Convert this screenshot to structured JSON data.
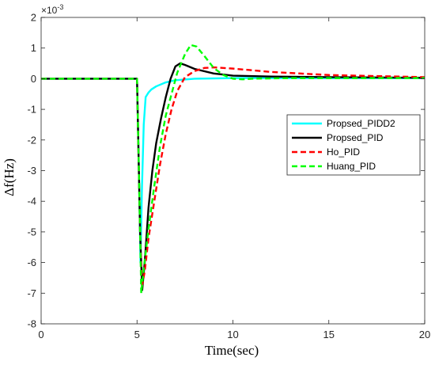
{
  "chart_data": {
    "type": "line",
    "xlabel": "Time(sec)",
    "ylabel": "Δf(Hz)",
    "y_exponent_label": "×10",
    "y_exponent_power": "-3",
    "xlim": [
      0,
      20
    ],
    "ylim": [
      -8,
      2
    ],
    "x_ticks": [
      0,
      5,
      10,
      15,
      20
    ],
    "y_ticks": [
      -8,
      -7,
      -6,
      -5,
      -4,
      -3,
      -2,
      -1,
      0,
      1,
      2
    ],
    "grid": false,
    "legend_position": "center-right",
    "series": [
      {
        "name": "Propsed_PIDD2",
        "color": "#00ffff",
        "dash": "solid",
        "points": [
          [
            0,
            0
          ],
          [
            5.0,
            0
          ],
          [
            5.1,
            -3.0
          ],
          [
            5.18,
            -6.0
          ],
          [
            5.26,
            -3.5
          ],
          [
            5.35,
            -1.5
          ],
          [
            5.45,
            -0.6
          ],
          [
            5.6,
            -0.45
          ],
          [
            5.75,
            -0.35
          ],
          [
            6.0,
            -0.25
          ],
          [
            6.5,
            -0.12
          ],
          [
            7.0,
            -0.05
          ],
          [
            8.0,
            0.0
          ],
          [
            10,
            0.02
          ],
          [
            15,
            0.02
          ],
          [
            20,
            0.02
          ]
        ]
      },
      {
        "name": "Propsed_PID",
        "color": "#000000",
        "dash": "solid",
        "points": [
          [
            0,
            0
          ],
          [
            5.0,
            0
          ],
          [
            5.08,
            -2.5
          ],
          [
            5.16,
            -5.0
          ],
          [
            5.27,
            -6.9
          ],
          [
            5.4,
            -6.0
          ],
          [
            5.6,
            -4.2
          ],
          [
            5.8,
            -3.0
          ],
          [
            6.0,
            -2.1
          ],
          [
            6.25,
            -1.3
          ],
          [
            6.5,
            -0.6
          ],
          [
            6.75,
            0.0
          ],
          [
            7.0,
            0.4
          ],
          [
            7.25,
            0.5
          ],
          [
            7.5,
            0.45
          ],
          [
            8.0,
            0.32
          ],
          [
            9.0,
            0.17
          ],
          [
            10.0,
            0.1
          ],
          [
            12.0,
            0.07
          ],
          [
            15.0,
            0.05
          ],
          [
            20.0,
            0.03
          ]
        ]
      },
      {
        "name": "Ho_PID",
        "color": "#ff0000",
        "dash": "dashed",
        "points": [
          [
            0,
            0
          ],
          [
            5.0,
            0
          ],
          [
            5.08,
            -2.5
          ],
          [
            5.16,
            -5.0
          ],
          [
            5.25,
            -6.8
          ],
          [
            5.4,
            -6.3
          ],
          [
            5.6,
            -5.2
          ],
          [
            5.9,
            -4.0
          ],
          [
            6.2,
            -2.8
          ],
          [
            6.5,
            -1.8
          ],
          [
            6.8,
            -1.0
          ],
          [
            7.1,
            -0.4
          ],
          [
            7.5,
            0.05
          ],
          [
            8.0,
            0.25
          ],
          [
            8.5,
            0.35
          ],
          [
            9.0,
            0.37
          ],
          [
            10.0,
            0.33
          ],
          [
            12.0,
            0.22
          ],
          [
            15.0,
            0.12
          ],
          [
            20.0,
            0.05
          ]
        ]
      },
      {
        "name": "Huang_PID",
        "color": "#00ff00",
        "dash": "dashed",
        "points": [
          [
            0,
            0
          ],
          [
            5.0,
            0
          ],
          [
            5.08,
            -2.5
          ],
          [
            5.16,
            -5.0
          ],
          [
            5.22,
            -7.0
          ],
          [
            5.35,
            -6.2
          ],
          [
            5.6,
            -4.9
          ],
          [
            5.9,
            -3.5
          ],
          [
            6.2,
            -2.2
          ],
          [
            6.5,
            -1.2
          ],
          [
            6.8,
            -0.5
          ],
          [
            7.1,
            0.2
          ],
          [
            7.5,
            0.8
          ],
          [
            7.8,
            1.1
          ],
          [
            8.1,
            1.05
          ],
          [
            8.5,
            0.75
          ],
          [
            9.0,
            0.35
          ],
          [
            9.5,
            0.12
          ],
          [
            10.0,
            0.0
          ],
          [
            10.5,
            -0.02
          ],
          [
            11.0,
            0.0
          ],
          [
            13.0,
            0.02
          ],
          [
            20.0,
            0.02
          ]
        ]
      }
    ]
  }
}
